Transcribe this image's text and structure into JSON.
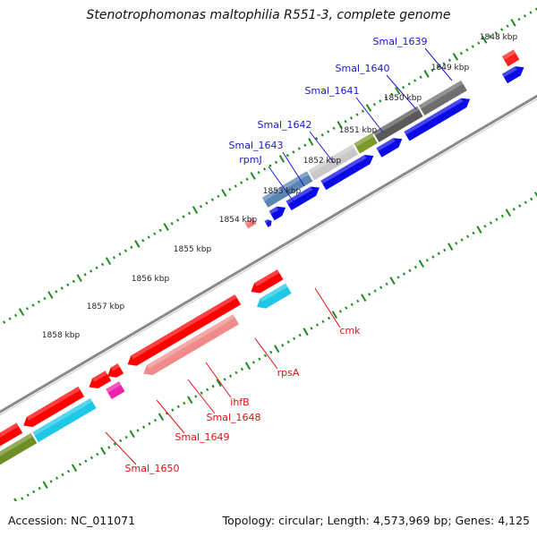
{
  "title": "Stenotrophomonas maltophilia R551-3, complete genome",
  "footer": {
    "accession": "Accession: NC_011071",
    "topology": "Topology: circular; Length: 4,573,969 bp; Genes: 4,125"
  },
  "colors": {
    "backbone": "#8a8a8a",
    "tick": "#1e8a1e",
    "forward_label": "#1a1acc",
    "reverse_label": "#dd1111"
  },
  "ticks": [
    "1848 kbp",
    "1849 kbp",
    "1850 kbp",
    "1851 kbp",
    "1852 kbp",
    "1853 kbp",
    "1854 kbp",
    "1855 kbp",
    "1856 kbp",
    "1857 kbp",
    "1858 kbp"
  ],
  "forward_labels": [
    {
      "id": "smal1639",
      "text": "Smal_1639"
    },
    {
      "id": "smal1640",
      "text": "Smal_1640"
    },
    {
      "id": "smal1641",
      "text": "Smal_1641"
    },
    {
      "id": "smal1642",
      "text": "Smal_1642"
    },
    {
      "id": "smal1643",
      "text": "Smal_1643"
    },
    {
      "id": "rpmj",
      "text": "rpmJ"
    }
  ],
  "reverse_labels": [
    {
      "id": "cmk",
      "text": "cmk"
    },
    {
      "id": "rpsa",
      "text": "rpsA"
    },
    {
      "id": "ihfb",
      "text": "ihfB"
    },
    {
      "id": "smal1648",
      "text": "Smal_1648"
    },
    {
      "id": "smal1649",
      "text": "Smal_1649"
    },
    {
      "id": "smal1650",
      "text": "Smal_1650"
    }
  ]
}
